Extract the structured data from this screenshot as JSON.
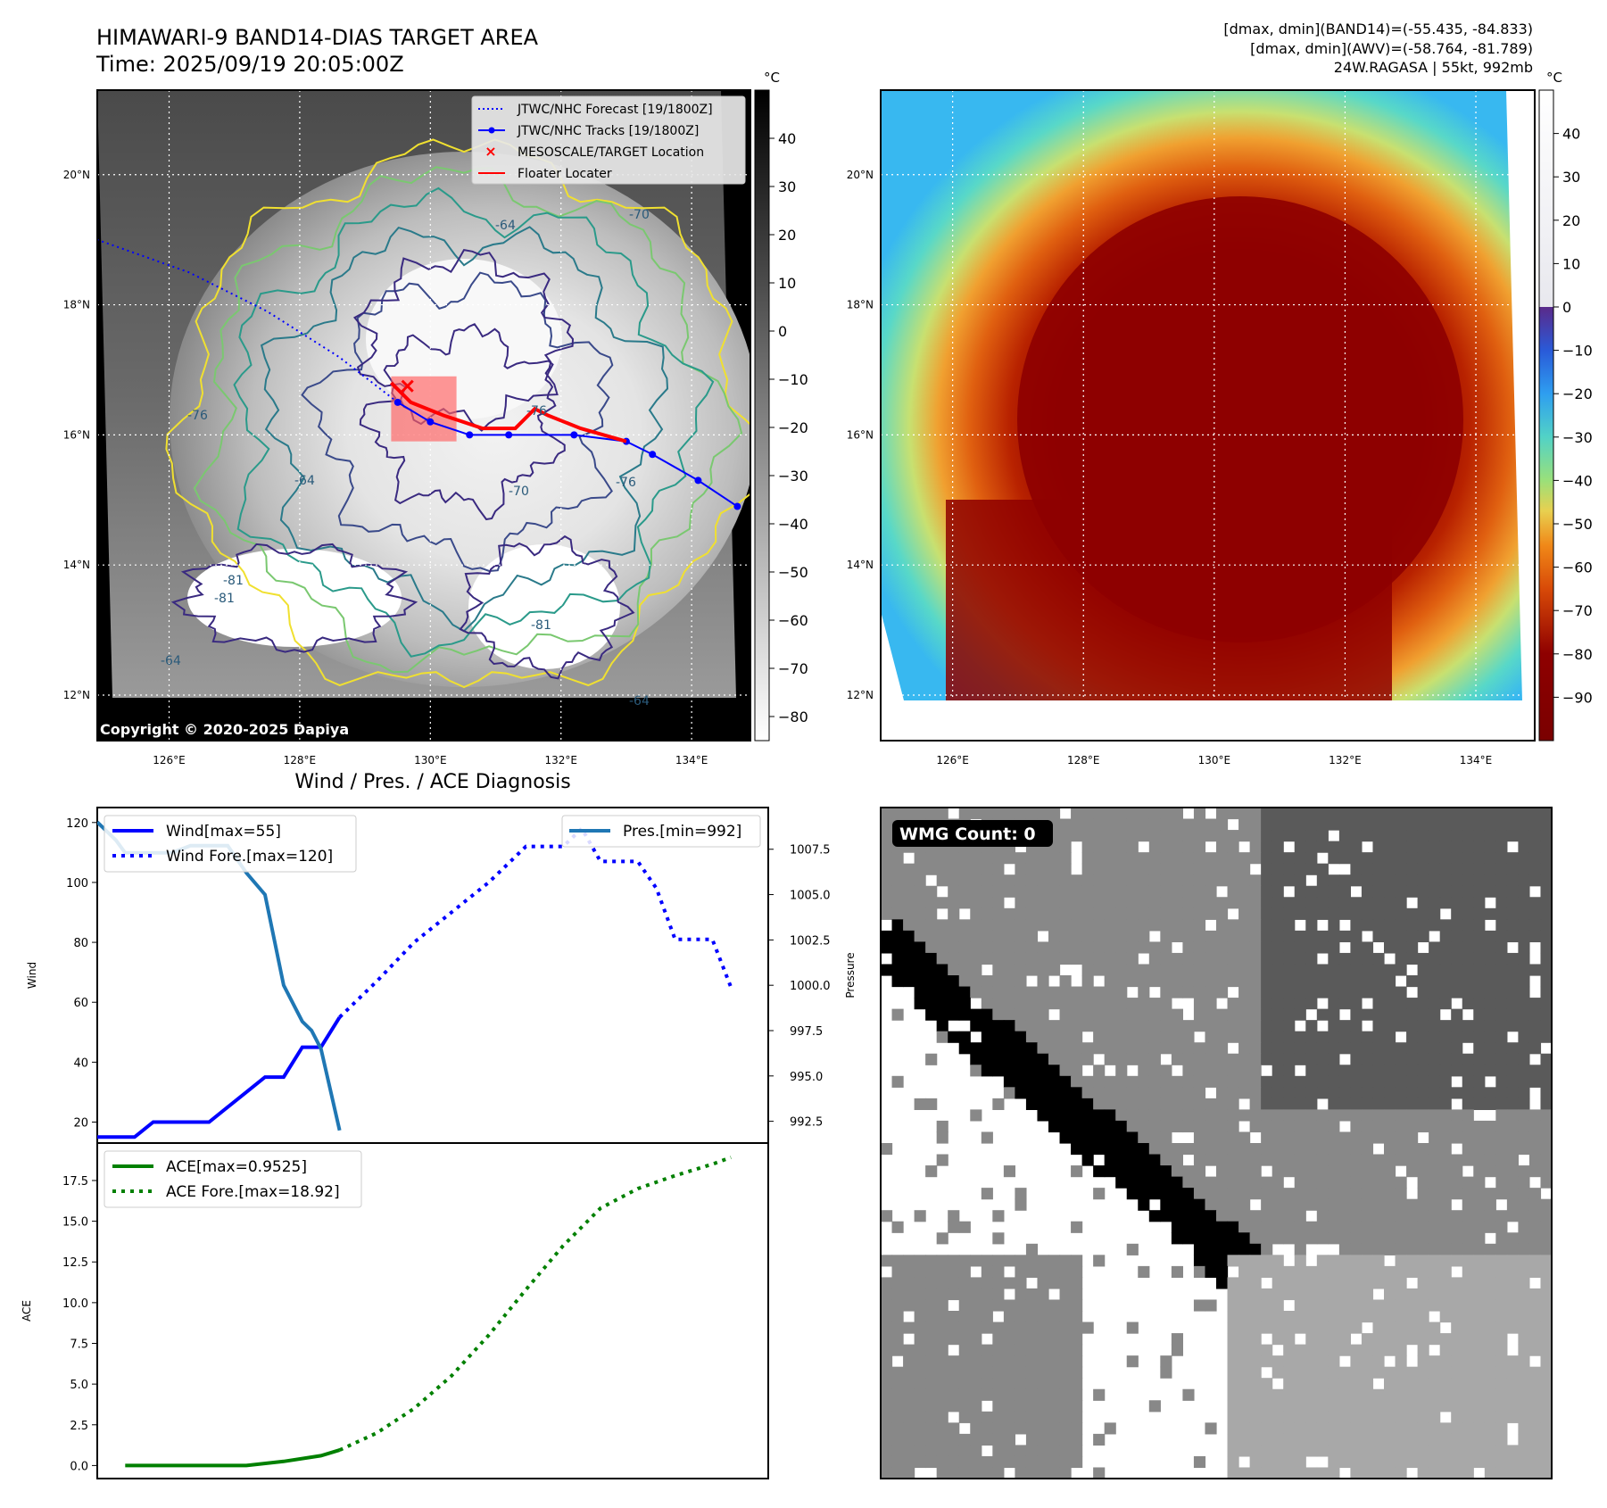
{
  "header": {
    "title": "HIMAWARI-9 BAND14-DIAS TARGET AREA",
    "time": "Time: 2025/09/19 20:05:00Z",
    "band_range": "[dmax, dmin](BAND14)=(-55.435, -84.833)",
    "awv_range": "[dmax, dmin](AWV)=(-58.764, -81.789)",
    "storm": "24W.RAGASA | 55kt, 992mb",
    "copyright": "Copyright © 2020-2025 Dapiya"
  },
  "map_axes": {
    "lon_ticks": [
      {
        "v": 126,
        "label": "126°E"
      },
      {
        "v": 128,
        "label": "128°E"
      },
      {
        "v": 130,
        "label": "130°E"
      },
      {
        "v": 132,
        "label": "132°E"
      },
      {
        "v": 134,
        "label": "134°E"
      }
    ],
    "lat_ticks": [
      {
        "v": 12,
        "label": "12°N"
      },
      {
        "v": 14,
        "label": "14°N"
      },
      {
        "v": 16,
        "label": "16°N"
      },
      {
        "v": 18,
        "label": "18°N"
      },
      {
        "v": 20,
        "label": "20°N"
      }
    ],
    "lon_range": [
      124.9,
      134.9
    ],
    "lat_range": [
      11.3,
      21.3
    ]
  },
  "colorbars": {
    "unit": "°C",
    "gray_ticks": [
      40,
      30,
      20,
      10,
      0,
      -10,
      -20,
      -30,
      -40,
      -50,
      -60,
      -70,
      -80
    ],
    "gray_range": [
      -85,
      50
    ],
    "color_ticks": [
      40,
      30,
      20,
      10,
      0,
      -10,
      -20,
      -30,
      -40,
      -50,
      -60,
      -70,
      -80,
      -90
    ],
    "color_range": [
      -100,
      50
    ],
    "color_stops": [
      {
        "v": 50,
        "c": "#ffffff"
      },
      {
        "v": 0,
        "c": "#e8e8ee"
      },
      {
        "v": -0.01,
        "c": "#5a2a8a"
      },
      {
        "v": -10,
        "c": "#2a5ad8"
      },
      {
        "v": -20,
        "c": "#2e9ef0"
      },
      {
        "v": -30,
        "c": "#52d2c6"
      },
      {
        "v": -40,
        "c": "#9ae07a"
      },
      {
        "v": -47,
        "c": "#e8d050"
      },
      {
        "v": -55,
        "c": "#f08818"
      },
      {
        "v": -65,
        "c": "#d84a08"
      },
      {
        "v": -80,
        "c": "#8e0000"
      },
      {
        "v": -100,
        "c": "#7a0000"
      }
    ]
  },
  "map_legend": [
    {
      "label": "JTWC/NHC Forecast [19/1800Z]",
      "style": "dotted",
      "color": "#0000ff"
    },
    {
      "label": "JTWC/NHC Tracks [19/1800Z]",
      "style": "solid-marker",
      "color": "#0000ff"
    },
    {
      "label": "MESOSCALE/TARGET Location",
      "style": "x",
      "color": "#ff0000"
    },
    {
      "label": "Floater Locater",
      "style": "solid",
      "color": "#ff0000"
    }
  ],
  "contour_labels": [
    "-64",
    "-70",
    "-76",
    "-81",
    "-64",
    "-76",
    "-81",
    "-70",
    "-64",
    "-81",
    "-76",
    "-64"
  ],
  "track": {
    "history": [
      [
        134.7,
        14.9
      ],
      [
        134.1,
        15.3
      ],
      [
        133.4,
        15.7
      ],
      [
        133.0,
        15.9
      ],
      [
        132.2,
        16.0
      ],
      [
        131.2,
        16.0
      ],
      [
        130.6,
        16.0
      ],
      [
        130.0,
        16.2
      ],
      [
        129.5,
        16.5
      ]
    ],
    "forecast": [
      [
        129.5,
        16.5
      ],
      [
        128.6,
        17.2
      ],
      [
        127.5,
        17.9
      ],
      [
        126.3,
        18.5
      ],
      [
        124.9,
        19.0
      ]
    ],
    "floater": [
      [
        129.4,
        16.8
      ],
      [
        129.7,
        16.5
      ],
      [
        130.2,
        16.3
      ],
      [
        130.8,
        16.1
      ],
      [
        131.3,
        16.1
      ],
      [
        131.6,
        16.4
      ],
      [
        131.8,
        16.3
      ],
      [
        132.3,
        16.1
      ],
      [
        133.0,
        15.9
      ]
    ],
    "target": [
      129.65,
      16.75
    ],
    "target_box": [
      [
        129.4,
        15.9
      ],
      [
        130.4,
        16.9
      ]
    ]
  },
  "chart_data": [
    {
      "type": "line",
      "title": "Wind / Pres. / ACE Diagnosis",
      "ylabel": "Wind",
      "y2label": "Pressure",
      "ylim": [
        13,
        125
      ],
      "y2lim": [
        991.3,
        1009.8
      ],
      "xlim": [
        0,
        36
      ],
      "yticks": [
        20,
        40,
        60,
        80,
        100,
        120
      ],
      "y2ticks": [
        992.5,
        995.0,
        997.5,
        1000.0,
        1002.5,
        1005.0,
        1007.5
      ],
      "series": [
        {
          "name": "Wind[max=55]",
          "style": "solid",
          "color": "#0000ff",
          "axis": "left",
          "x": [
            0,
            2,
            3,
            4,
            5,
            6,
            7,
            8,
            9,
            10,
            11,
            12,
            13
          ],
          "values": [
            15,
            15,
            20,
            20,
            20,
            20,
            25,
            30,
            35,
            35,
            45,
            45,
            55
          ]
        },
        {
          "name": "Wind Fore.[max=120]",
          "style": "dotted",
          "color": "#0000ff",
          "axis": "left",
          "x": [
            13,
            15,
            17,
            19,
            21,
            22,
            23,
            24,
            25,
            26,
            27,
            28,
            29,
            30,
            31,
            32,
            33,
            34
          ],
          "values": [
            55,
            67,
            80,
            90,
            100,
            106,
            112,
            112,
            112,
            118,
            107,
            107,
            107,
            98,
            81,
            81,
            81,
            65
          ]
        },
        {
          "name": "Pres.[min=992]",
          "style": "solid",
          "color": "#1f77b4",
          "axis": "right",
          "x": [
            0,
            1,
            1.5,
            3,
            4,
            5,
            6,
            7,
            8,
            9,
            10,
            11,
            11.5,
            12,
            13
          ],
          "values": [
            1009,
            1008,
            1007.3,
            1007.3,
            1007.3,
            1007.7,
            1007.7,
            1007.7,
            1006.2,
            1005,
            1000,
            998,
            997.5,
            996.5,
            992
          ]
        }
      ]
    },
    {
      "type": "line",
      "ylabel": "ACE",
      "ylim": [
        -0.8,
        19.8
      ],
      "xlim": [
        0,
        36
      ],
      "yticks": [
        0.0,
        2.5,
        5.0,
        7.5,
        10.0,
        12.5,
        15.0,
        17.5
      ],
      "series": [
        {
          "name": "ACE[max=0.9525]",
          "style": "solid",
          "color": "#008000",
          "x": [
            1.5,
            4,
            6,
            8,
            10,
            12,
            13
          ],
          "values": [
            0,
            0,
            0,
            0,
            0.25,
            0.6,
            0.95
          ]
        },
        {
          "name": "ACE Fore.[max=18.92]",
          "style": "dotted",
          "color": "#008000",
          "x": [
            13,
            15,
            17,
            19,
            21,
            23,
            25,
            27,
            29,
            31,
            33,
            34
          ],
          "values": [
            0.95,
            2.0,
            3.5,
            5.5,
            8.0,
            10.8,
            13.5,
            15.8,
            17.0,
            17.8,
            18.5,
            18.92
          ]
        }
      ]
    }
  ],
  "wmg": {
    "label": "WMG Count: 0"
  }
}
